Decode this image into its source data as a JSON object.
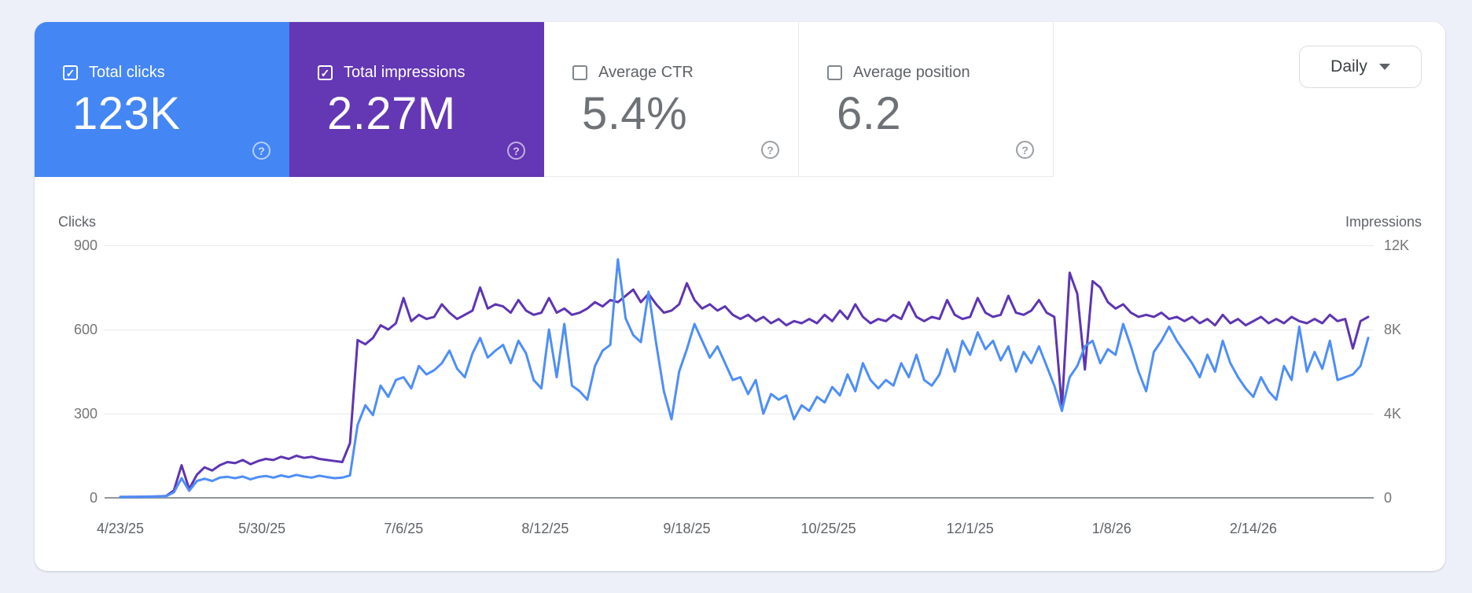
{
  "icons": {
    "checkmark": "✓",
    "help": "?",
    "chevron_down": "▾"
  },
  "granularity_dropdown": {
    "value": "Daily"
  },
  "metric_tiles": [
    {
      "label": "Total clicks",
      "value": "123K",
      "checked": true,
      "selected": true,
      "tile_color": "#4486f4"
    },
    {
      "label": "Total impressions",
      "value": "2.27M",
      "checked": true,
      "selected": true,
      "tile_color": "#6437b4"
    },
    {
      "label": "Average CTR",
      "value": "5.4%",
      "checked": false,
      "selected": false,
      "tile_color": "#ffffff"
    },
    {
      "label": "Average position",
      "value": "6.2",
      "checked": false,
      "selected": false,
      "tile_color": "#ffffff"
    }
  ],
  "chart_data": {
    "type": "line",
    "grid": true,
    "legend_position": "none",
    "x_axis": {
      "tick_labels": [
        "4/23/25",
        "5/30/25",
        "7/6/25",
        "8/12/25",
        "9/18/25",
        "10/25/25",
        "12/1/25",
        "1/8/26",
        "2/14/26"
      ],
      "tick_day_indices": [
        0,
        37,
        74,
        111,
        148,
        185,
        222,
        259,
        296
      ],
      "x_unit": "days since 4/23/25"
    },
    "left_axis": {
      "title": "Clicks",
      "tick_labels": [
        "900",
        "600",
        "300",
        "0"
      ],
      "range": [
        0,
        900
      ]
    },
    "right_axis": {
      "title": "Impressions",
      "tick_labels": [
        "12K",
        "8K",
        "4K",
        "0"
      ],
      "range": [
        0,
        12000
      ]
    },
    "sampling": {
      "x_start_day": 0,
      "x_step_days": 2,
      "x_end_day": 326
    },
    "series": [
      {
        "name": "Clicks",
        "axis": "left",
        "color": "#4e8ef7",
        "values": [
          2,
          3,
          3,
          4,
          4,
          5,
          6,
          20,
          70,
          25,
          60,
          68,
          60,
          72,
          75,
          70,
          76,
          66,
          74,
          78,
          72,
          80,
          74,
          82,
          76,
          72,
          79,
          74,
          70,
          72,
          80,
          260,
          330,
          295,
          400,
          360,
          420,
          430,
          390,
          470,
          440,
          455,
          480,
          525,
          460,
          430,
          515,
          570,
          500,
          525,
          545,
          480,
          560,
          515,
          420,
          390,
          600,
          430,
          620,
          400,
          380,
          350,
          470,
          525,
          545,
          850,
          640,
          580,
          555,
          735,
          550,
          380,
          280,
          450,
          530,
          620,
          560,
          500,
          540,
          480,
          420,
          430,
          370,
          420,
          300,
          370,
          350,
          365,
          280,
          330,
          310,
          360,
          340,
          395,
          365,
          440,
          380,
          480,
          420,
          390,
          420,
          400,
          480,
          430,
          510,
          420,
          400,
          440,
          530,
          450,
          560,
          510,
          590,
          530,
          560,
          490,
          540,
          450,
          520,
          480,
          540,
          470,
          400,
          310,
          430,
          470,
          540,
          560,
          480,
          530,
          510,
          620,
          540,
          450,
          380,
          520,
          560,
          610,
          560,
          520,
          480,
          430,
          510,
          450,
          560,
          480,
          430,
          390,
          360,
          430,
          380,
          350,
          470,
          420,
          610,
          450,
          520,
          460,
          560,
          420,
          430,
          440,
          470,
          570
        ]
      },
      {
        "name": "Impressions",
        "axis": "right",
        "color": "#5e35b1",
        "values": [
          40,
          45,
          50,
          55,
          60,
          70,
          90,
          350,
          1550,
          420,
          1100,
          1450,
          1300,
          1550,
          1700,
          1650,
          1800,
          1600,
          1750,
          1850,
          1800,
          1950,
          1850,
          2000,
          1900,
          1950,
          1850,
          1800,
          1750,
          1700,
          2600,
          7500,
          7300,
          7600,
          8200,
          8000,
          8300,
          9500,
          8400,
          8700,
          8500,
          8600,
          9200,
          8800,
          8500,
          8700,
          8900,
          10000,
          9000,
          9200,
          9100,
          8800,
          9400,
          8900,
          8700,
          8800,
          9500,
          8800,
          9000,
          8700,
          8800,
          9000,
          9300,
          9100,
          9400,
          9300,
          9600,
          9900,
          9300,
          9700,
          9200,
          8800,
          8900,
          9200,
          10200,
          9400,
          9000,
          9200,
          8900,
          9100,
          8700,
          8500,
          8700,
          8400,
          8600,
          8300,
          8500,
          8200,
          8400,
          8300,
          8500,
          8300,
          8700,
          8400,
          8900,
          8500,
          9200,
          8600,
          8300,
          8500,
          8400,
          8700,
          8500,
          9300,
          8600,
          8400,
          8600,
          8500,
          9400,
          8700,
          8500,
          8600,
          9500,
          8800,
          8600,
          8700,
          9600,
          8800,
          8700,
          8900,
          9400,
          8800,
          8600,
          4300,
          10700,
          9700,
          6100,
          10300,
          10000,
          9300,
          9000,
          9200,
          8800,
          8600,
          8700,
          8600,
          8800,
          8500,
          8600,
          8400,
          8600,
          8300,
          8500,
          8200,
          8700,
          8300,
          8500,
          8200,
          8400,
          8600,
          8300,
          8500,
          8300,
          8600,
          8400,
          8300,
          8500,
          8300,
          8700,
          8400,
          8500,
          7100,
          8400,
          8600
        ]
      }
    ]
  }
}
